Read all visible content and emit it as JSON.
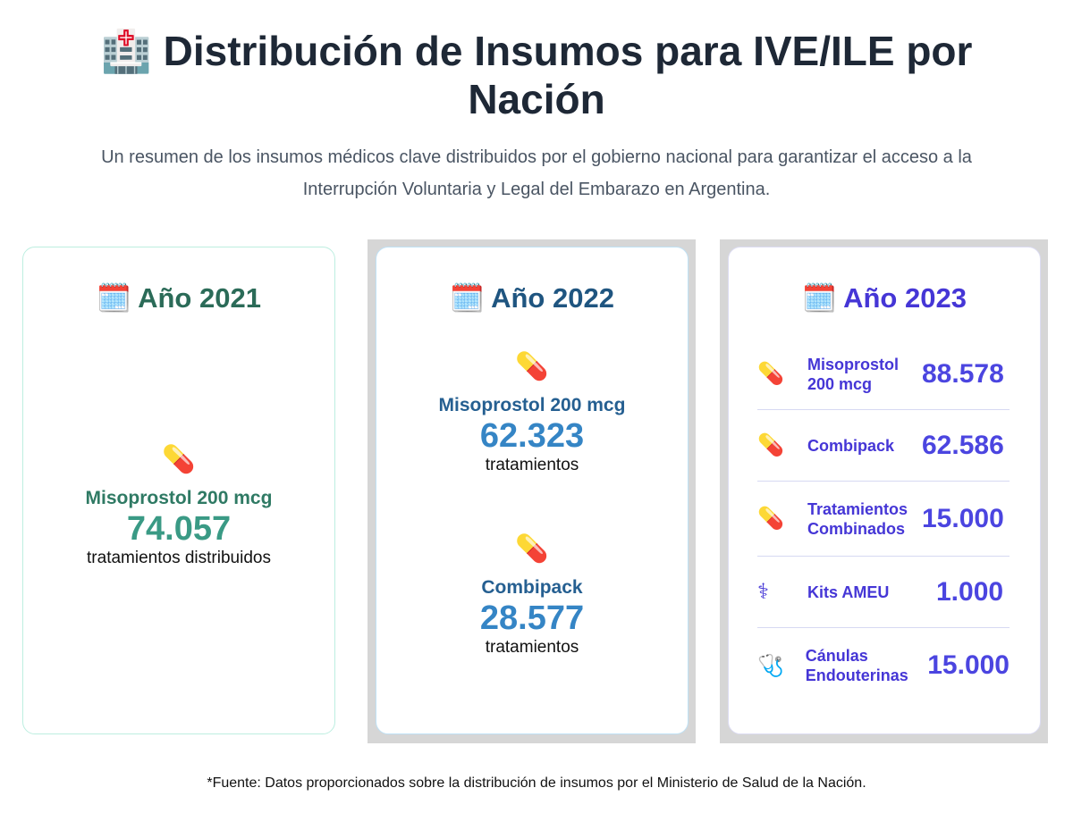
{
  "header": {
    "icon": "hospital-icon",
    "title": "Distribución de Insumos para IVE/ILE por Nación",
    "subtitle": "Un resumen de los insumos médicos clave distribuidos por el gobierno nacional para garantizar el acceso a la Interrupción Voluntaria y Legal del Embarazo en Argentina."
  },
  "cards": [
    {
      "year": "Año 2021",
      "items": [
        {
          "icon": "pill-icon",
          "label": "Misoprostol 200 mcg",
          "value": "74.057",
          "unit": "tratamientos distribuidos"
        }
      ]
    },
    {
      "year": "Año 2022",
      "items": [
        {
          "icon": "pill-icon",
          "label": "Misoprostol 200 mcg",
          "value": "62.323",
          "unit": "tratamientos"
        },
        {
          "icon": "pill-icon",
          "label": "Combipack",
          "value": "28.577",
          "unit": "tratamientos"
        }
      ]
    },
    {
      "year": "Año 2023",
      "items": [
        {
          "icon": "pill-icon",
          "label": "Misoprostol 200 mcg",
          "value": "88.578"
        },
        {
          "icon": "pill-icon",
          "label": "Combipack",
          "value": "62.586"
        },
        {
          "icon": "pill-icon",
          "label": "Tratamientos Combinados",
          "value": "15.000"
        },
        {
          "icon": "medical-symbol-icon",
          "label": "Kits AMEU",
          "value": "1.000"
        },
        {
          "icon": "stethoscope-icon",
          "label": "Cánulas Endouterinas",
          "value": "15.000"
        }
      ]
    }
  ],
  "footer": "*Fuente: Datos proporcionados sobre la distribución de insumos por el Ministerio de Salud de la Nación.",
  "colors": {
    "y2021": "#2b6b58",
    "y2022": "#1f5580",
    "y2023": "#4536d6"
  }
}
